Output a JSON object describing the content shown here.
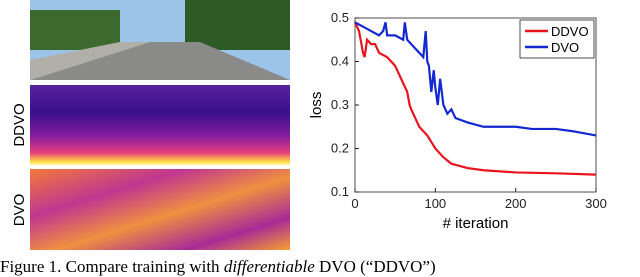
{
  "figure": {
    "panels": [
      {
        "label": "DDVO"
      },
      {
        "label": "DVO"
      }
    ]
  },
  "chart_data": {
    "type": "line",
    "xlabel": "# iteration",
    "ylabel": "loss",
    "xlim": [
      0,
      300
    ],
    "ylim": [
      0.1,
      0.5
    ],
    "xticks": [
      0,
      100,
      200,
      300
    ],
    "yticks": [
      0.1,
      0.2,
      0.3,
      0.4,
      0.5
    ],
    "legend": "upper right",
    "series": [
      {
        "name": "DDVO",
        "color": "#e8141e",
        "x": [
          0,
          5,
          10,
          12,
          15,
          20,
          25,
          30,
          40,
          45,
          50,
          55,
          60,
          65,
          68,
          70,
          75,
          80,
          90,
          100,
          110,
          120,
          140,
          160,
          200,
          250,
          300
        ],
        "values": [
          0.49,
          0.47,
          0.42,
          0.41,
          0.45,
          0.44,
          0.44,
          0.42,
          0.41,
          0.4,
          0.39,
          0.37,
          0.35,
          0.33,
          0.3,
          0.29,
          0.27,
          0.25,
          0.23,
          0.2,
          0.18,
          0.165,
          0.155,
          0.15,
          0.145,
          0.143,
          0.14
        ]
      },
      {
        "name": "DVO",
        "color": "#1428d2",
        "x": [
          0,
          10,
          20,
          30,
          35,
          38,
          40,
          50,
          60,
          62,
          65,
          70,
          75,
          80,
          85,
          88,
          90,
          92,
          95,
          98,
          100,
          103,
          106,
          110,
          115,
          120,
          125,
          140,
          160,
          200,
          220,
          250,
          270,
          300
        ],
        "values": [
          0.49,
          0.48,
          0.47,
          0.46,
          0.47,
          0.49,
          0.46,
          0.46,
          0.45,
          0.49,
          0.45,
          0.44,
          0.43,
          0.42,
          0.41,
          0.47,
          0.4,
          0.39,
          0.33,
          0.38,
          0.34,
          0.3,
          0.36,
          0.3,
          0.28,
          0.29,
          0.27,
          0.26,
          0.25,
          0.25,
          0.245,
          0.245,
          0.24,
          0.23
        ]
      }
    ]
  },
  "caption": {
    "prefix": "Figure 1. Compare training with ",
    "emphasis": "differentiable",
    "suffix": " DVO (“DDVO”)"
  }
}
